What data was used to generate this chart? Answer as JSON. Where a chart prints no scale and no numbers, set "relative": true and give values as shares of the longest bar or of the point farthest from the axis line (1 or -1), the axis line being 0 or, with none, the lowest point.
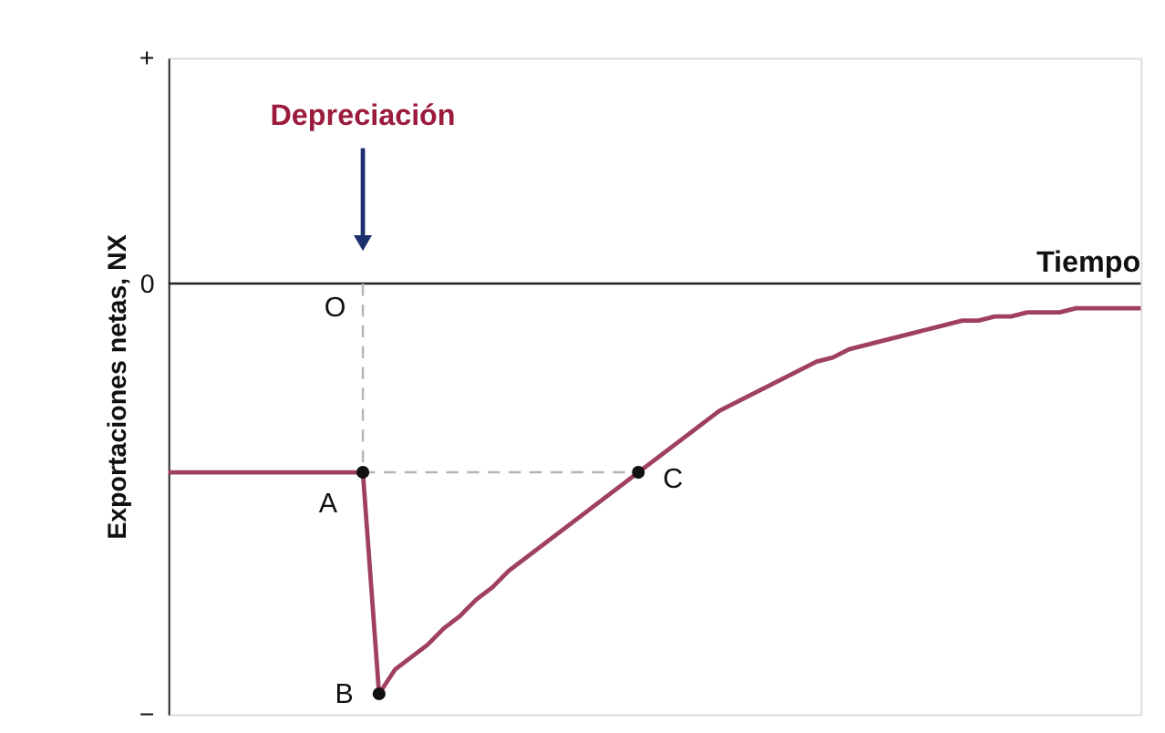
{
  "chart_data": {
    "type": "line",
    "relative": true,
    "xlabel": "Tiempo",
    "ylabel": "Exportaciones netas, NX",
    "categories": [
      null,
      null,
      null,
      null,
      null,
      null,
      null,
      null,
      null,
      null,
      null,
      null,
      null,
      null,
      null,
      null,
      null,
      null,
      null,
      null,
      null,
      null,
      null,
      null,
      null,
      null,
      null,
      null,
      null,
      null,
      null,
      null,
      null,
      null,
      null,
      null,
      null,
      null,
      null,
      null,
      null,
      null,
      null,
      null,
      null,
      null,
      null,
      null,
      null,
      null,
      null,
      null,
      null,
      null,
      null,
      null,
      null,
      null,
      null,
      null,
      null
    ],
    "series": [
      {
        "color": "#a0405f",
        "values": [
          -0.46,
          -0.46,
          -0.46,
          -0.46,
          -0.46,
          -0.46,
          -0.46,
          -0.46,
          -0.46,
          -0.46,
          -0.46,
          -0.46,
          -0.46,
          -1,
          -0.94,
          -0.91,
          -0.88,
          -0.84,
          -0.81,
          -0.77,
          -0.74,
          -0.7,
          -0.67,
          -0.64,
          -0.61,
          -0.58,
          -0.55,
          -0.52,
          -0.49,
          -0.46,
          -0.43,
          -0.4,
          -0.37,
          -0.34,
          -0.31,
          -0.29,
          -0.27,
          -0.25,
          -0.23,
          -0.21,
          -0.19,
          -0.18,
          -0.16,
          -0.15,
          -0.14,
          -0.13,
          -0.12,
          -0.11,
          -0.1,
          -0.09,
          -0.09,
          -0.08,
          -0.08,
          -0.07,
          -0.07,
          -0.07,
          -0.06,
          -0.06,
          -0.06,
          -0.06,
          -0.06
        ]
      }
    ],
    "ref_lines": [
      {
        "axis": "x",
        "line_style": "dashed",
        "color": "#b5b5b5",
        "label": "Depreciación"
      },
      {
        "axis": "y",
        "value": -0.46,
        "line_style": "dashed",
        "color": "#b5b5b5"
      }
    ],
    "annotations": [
      "+",
      "0",
      "−",
      "O",
      "A",
      "B",
      "C"
    ]
  }
}
